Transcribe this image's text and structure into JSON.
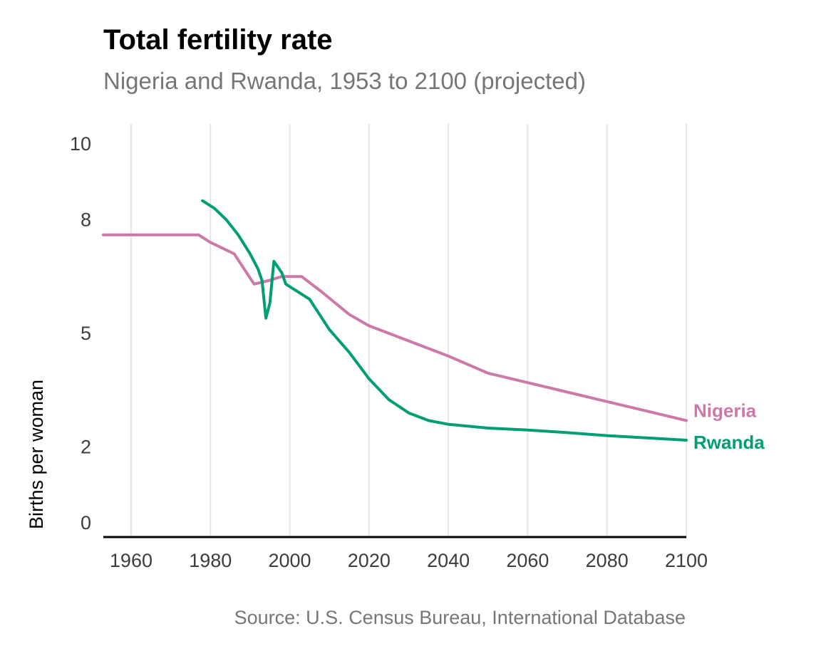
{
  "title": "Total fertility rate",
  "subtitle": "Nigeria and Rwanda, 1953 to 2100 (projected)",
  "caption": "Source: U.S. Census Bureau, International Database",
  "colors": {
    "nigeria": "#CC79A7",
    "rwanda": "#009E73",
    "grid": "#E6E6E6",
    "axis": "#000000"
  },
  "chart_data": {
    "type": "line",
    "title": "Total fertility rate",
    "subtitle": "Nigeria and Rwanda, 1953 to 2100 (projected)",
    "xlabel": "",
    "ylabel": "Births per woman",
    "xlim": [
      1953,
      2100
    ],
    "ylim": [
      0,
      10
    ],
    "x_ticks": [
      1960,
      1980,
      2000,
      2020,
      2040,
      2060,
      2080,
      2100
    ],
    "y_ticks": [
      0,
      2,
      5,
      8,
      10
    ],
    "y_tick_labels": [
      "0",
      "2",
      "5",
      "8",
      "10"
    ],
    "grid": "vertical",
    "legend": "direct labels at line ends (right)",
    "series": [
      {
        "name": "Nigeria",
        "color": "#CC79A7",
        "points": [
          [
            1953,
            7.6
          ],
          [
            1977,
            7.6
          ],
          [
            1980,
            7.4
          ],
          [
            1986,
            7.1
          ],
          [
            1991,
            6.3
          ],
          [
            1995,
            6.4
          ],
          [
            1998,
            6.5
          ],
          [
            2003,
            6.5
          ],
          [
            2008,
            6.1
          ],
          [
            2015,
            5.5
          ],
          [
            2020,
            5.2
          ],
          [
            2030,
            4.8
          ],
          [
            2040,
            4.4
          ],
          [
            2050,
            3.95
          ],
          [
            2060,
            3.7
          ],
          [
            2070,
            3.45
          ],
          [
            2080,
            3.2
          ],
          [
            2090,
            2.95
          ],
          [
            2100,
            2.7
          ]
        ]
      },
      {
        "name": "Rwanda",
        "color": "#009E73",
        "points": [
          [
            1978,
            8.5
          ],
          [
            1981,
            8.3
          ],
          [
            1984,
            8.0
          ],
          [
            1987,
            7.6
          ],
          [
            1990,
            7.1
          ],
          [
            1992,
            6.7
          ],
          [
            1993,
            6.4
          ],
          [
            1994,
            5.4
          ],
          [
            1995,
            5.8
          ],
          [
            1996,
            6.9
          ],
          [
            1998,
            6.6
          ],
          [
            1999,
            6.3
          ],
          [
            2005,
            5.9
          ],
          [
            2010,
            5.1
          ],
          [
            2015,
            4.5
          ],
          [
            2020,
            3.8
          ],
          [
            2025,
            3.25
          ],
          [
            2030,
            2.9
          ],
          [
            2035,
            2.7
          ],
          [
            2040,
            2.6
          ],
          [
            2050,
            2.5
          ],
          [
            2060,
            2.45
          ],
          [
            2070,
            2.38
          ],
          [
            2080,
            2.3
          ],
          [
            2090,
            2.24
          ],
          [
            2100,
            2.18
          ]
        ]
      }
    ]
  }
}
